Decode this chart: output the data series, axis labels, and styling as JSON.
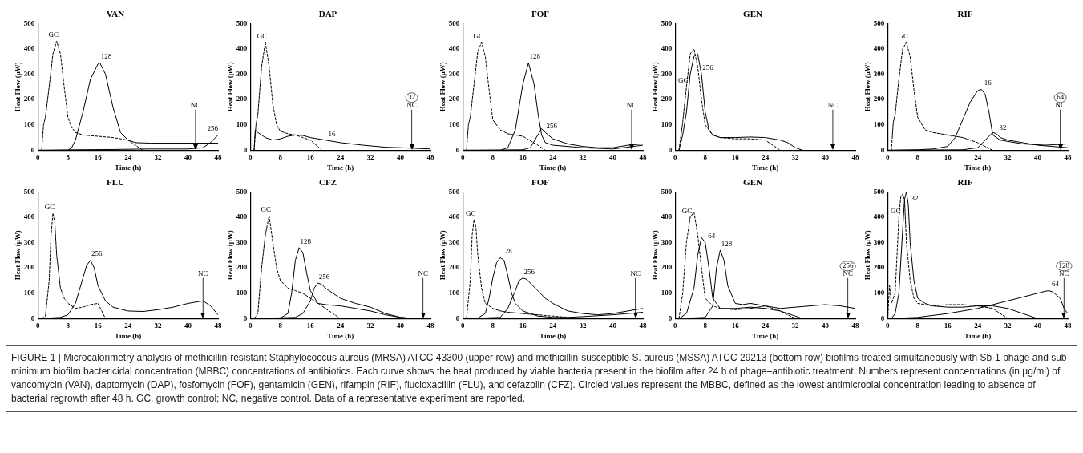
{
  "chart_data": [
    {
      "type": "line",
      "title": "VAN",
      "xlabel": "Time (h)",
      "ylabel": "Heat Flow (μW)",
      "xlim": [
        0,
        48
      ],
      "xticks": [
        0,
        8,
        16,
        24,
        32,
        40,
        48
      ],
      "ylim": [
        0,
        500
      ],
      "yticks": [
        0,
        100,
        200,
        300,
        400,
        500
      ],
      "ref_lines": [
        {
          "axis": "x",
          "value": 42,
          "label": "NC"
        }
      ],
      "series": [
        {
          "name": "GC",
          "color": "#000000",
          "line_style": "dashed",
          "x": [
            0,
            1,
            1.5,
            2,
            3,
            4,
            5,
            6,
            7,
            8,
            9,
            10,
            12,
            16,
            20,
            24,
            26,
            28
          ],
          "values": [
            0,
            0,
            100,
            130,
            250,
            380,
            430,
            380,
            250,
            130,
            90,
            70,
            60,
            55,
            50,
            40,
            20,
            0
          ]
        },
        {
          "name": "128",
          "color": "#000000",
          "line_style": "solid",
          "x": [
            0,
            8,
            9,
            10,
            12,
            14,
            16,
            16.5,
            18,
            20,
            22,
            24,
            26,
            30,
            40,
            48
          ],
          "values": [
            0,
            0,
            10,
            40,
            150,
            280,
            340,
            345,
            300,
            170,
            70,
            40,
            30,
            28,
            28,
            28
          ]
        },
        {
          "name": "256",
          "color": "#000000",
          "line_style": "solid",
          "x": [
            0,
            10,
            20,
            30,
            40,
            44,
            46,
            48
          ],
          "values": [
            0,
            2,
            3,
            5,
            5,
            10,
            30,
            60
          ]
        }
      ]
    },
    {
      "type": "line",
      "title": "DAP",
      "xlabel": "Time (h)",
      "ylabel": "Heat Flow (μW)",
      "xlim": [
        0,
        48
      ],
      "xticks": [
        0,
        8,
        16,
        24,
        32,
        40,
        48
      ],
      "ylim": [
        0,
        500
      ],
      "yticks": [
        0,
        100,
        200,
        300,
        400,
        500
      ],
      "ref_lines": [
        {
          "axis": "x",
          "value": 43,
          "label": "NC"
        }
      ],
      "annotations": [
        "32"
      ],
      "series": [
        {
          "name": "GC",
          "color": "#000000",
          "line_style": "dashed",
          "x": [
            1,
            1.5,
            2,
            3,
            4,
            5,
            6,
            7,
            8,
            10,
            12,
            14,
            16,
            18,
            19
          ],
          "values": [
            0,
            100,
            140,
            330,
            425,
            330,
            180,
            100,
            75,
            65,
            60,
            50,
            40,
            15,
            0
          ]
        },
        {
          "name": "16",
          "color": "#000000",
          "line_style": "solid",
          "x": [
            1,
            1.3,
            2,
            4,
            6,
            8,
            10,
            12,
            14,
            16,
            20,
            24,
            30,
            36,
            40,
            48
          ],
          "values": [
            0,
            80,
            70,
            50,
            40,
            45,
            55,
            60,
            58,
            50,
            40,
            30,
            20,
            12,
            10,
            5
          ]
        }
      ]
    },
    {
      "type": "line",
      "title": "FOF",
      "xlabel": "Time (h)",
      "ylabel": "Heat Flow (μW)",
      "xlim": [
        0,
        48
      ],
      "xticks": [
        0,
        8,
        16,
        24,
        32,
        40,
        48
      ],
      "ylim": [
        0,
        500
      ],
      "yticks": [
        0,
        100,
        200,
        300,
        400,
        500
      ],
      "ref_lines": [
        {
          "axis": "x",
          "value": 45,
          "label": "NC"
        }
      ],
      "series": [
        {
          "name": "GC",
          "color": "#000000",
          "line_style": "dashed",
          "x": [
            1,
            1.5,
            2,
            3,
            4,
            5,
            6,
            7,
            8,
            10,
            12,
            16,
            20,
            22
          ],
          "values": [
            0,
            100,
            130,
            260,
            390,
            425,
            370,
            240,
            120,
            80,
            65,
            55,
            20,
            0
          ]
        },
        {
          "name": "128",
          "color": "#000000",
          "line_style": "solid",
          "x": [
            0,
            10,
            12,
            14,
            16,
            17.5,
            19,
            20,
            21,
            22,
            24,
            28,
            32,
            40,
            48
          ],
          "values": [
            0,
            0,
            10,
            80,
            260,
            345,
            260,
            150,
            60,
            30,
            20,
            15,
            10,
            5,
            20
          ]
        },
        {
          "name": "256",
          "color": "#000000",
          "line_style": "solid",
          "x": [
            0,
            16,
            18,
            20,
            21,
            22,
            24,
            28,
            32,
            36,
            40,
            44,
            48
          ],
          "values": [
            0,
            2,
            10,
            60,
            85,
            70,
            45,
            25,
            15,
            10,
            10,
            20,
            25
          ]
        }
      ]
    },
    {
      "type": "line",
      "title": "GEN",
      "xlabel": "Time (h)",
      "ylabel": "Heat Flow (μW)",
      "xlim": [
        0,
        48
      ],
      "xticks": [
        0,
        8,
        16,
        24,
        32,
        40,
        48
      ],
      "ylim": [
        0,
        500
      ],
      "yticks": [
        0,
        100,
        200,
        300,
        400,
        500
      ],
      "ref_lines": [
        {
          "axis": "x",
          "value": 42,
          "label": "NC"
        }
      ],
      "series": [
        {
          "name": "GC",
          "color": "#000000",
          "line_style": "dashed",
          "x": [
            1,
            2,
            3,
            4,
            5,
            6,
            7,
            8,
            10,
            12,
            16,
            20,
            24,
            26,
            28
          ],
          "values": [
            0,
            110,
            250,
            380,
            400,
            330,
            200,
            100,
            60,
            50,
            45,
            45,
            40,
            20,
            0
          ]
        },
        {
          "name": "256",
          "color": "#000000",
          "line_style": "solid",
          "x": [
            1,
            2,
            3,
            4,
            5,
            6,
            7,
            8,
            9,
            10,
            12,
            16,
            20,
            24,
            28,
            30,
            32,
            34
          ],
          "values": [
            0,
            60,
            150,
            300,
            370,
            380,
            300,
            150,
            80,
            60,
            50,
            50,
            52,
            50,
            40,
            30,
            10,
            0
          ]
        }
      ]
    },
    {
      "type": "line",
      "title": "RIF",
      "xlabel": "Time (h)",
      "ylabel": "Heat Flow (μW)",
      "xlim": [
        0,
        48
      ],
      "xticks": [
        0,
        8,
        16,
        24,
        32,
        40,
        48
      ],
      "ylim": [
        0,
        500
      ],
      "yticks": [
        0,
        100,
        200,
        300,
        400,
        500
      ],
      "ref_lines": [
        {
          "axis": "x",
          "value": 46,
          "label": "NC"
        }
      ],
      "annotations": [
        "64"
      ],
      "series": [
        {
          "name": "GC",
          "color": "#000000",
          "line_style": "dashed",
          "x": [
            1,
            1.5,
            2,
            3,
            4,
            5,
            6,
            7,
            8,
            10,
            12,
            16,
            20,
            24,
            28
          ],
          "values": [
            0,
            110,
            140,
            280,
            400,
            425,
            370,
            240,
            130,
            80,
            70,
            60,
            50,
            30,
            0
          ]
        },
        {
          "name": "16",
          "color": "#000000",
          "line_style": "solid",
          "x": [
            0,
            8,
            12,
            16,
            18,
            20,
            22,
            24,
            25,
            26,
            27,
            28,
            30,
            36,
            42,
            48
          ],
          "values": [
            0,
            2,
            5,
            15,
            50,
            120,
            190,
            235,
            240,
            220,
            150,
            60,
            40,
            25,
            20,
            25
          ]
        },
        {
          "name": "32",
          "color": "#000000",
          "line_style": "solid",
          "x": [
            0,
            20,
            24,
            26,
            28,
            29,
            30,
            32,
            36,
            40,
            48
          ],
          "values": [
            0,
            2,
            10,
            40,
            70,
            65,
            50,
            40,
            30,
            20,
            10
          ]
        }
      ]
    },
    {
      "type": "line",
      "title": "FLU",
      "xlabel": "Time (h)",
      "ylabel": "Heat Flow (μW)",
      "xlim": [
        0,
        48
      ],
      "xticks": [
        0,
        8,
        16,
        24,
        32,
        40,
        48
      ],
      "ylim": [
        0,
        500
      ],
      "yticks": [
        0,
        100,
        200,
        300,
        400,
        500
      ],
      "ref_lines": [
        {
          "axis": "x",
          "value": 44,
          "label": "NC"
        }
      ],
      "series": [
        {
          "name": "GC",
          "color": "#000000",
          "line_style": "dashed",
          "x": [
            1,
            2,
            3,
            3.5,
            4,
            4.5,
            5,
            6,
            7,
            8,
            10,
            12,
            14,
            16,
            17,
            18
          ],
          "values": [
            0,
            10,
            150,
            330,
            415,
            380,
            250,
            120,
            80,
            60,
            40,
            45,
            55,
            60,
            30,
            0
          ]
        },
        {
          "name": "256",
          "color": "#000000",
          "line_style": "solid",
          "x": [
            0,
            6,
            8,
            10,
            12,
            13,
            14,
            15,
            16,
            18,
            20,
            24,
            28,
            32,
            36,
            40,
            44,
            46,
            48
          ],
          "values": [
            0,
            5,
            15,
            60,
            160,
            210,
            230,
            200,
            130,
            70,
            45,
            30,
            28,
            35,
            45,
            60,
            70,
            50,
            15
          ]
        }
      ]
    },
    {
      "type": "line",
      "title": "CFZ",
      "xlabel": "Time (h)",
      "ylabel": "Heat Flow (μW)",
      "xlim": [
        0,
        48
      ],
      "xticks": [
        0,
        8,
        16,
        24,
        32,
        40,
        48
      ],
      "ylim": [
        0,
        500
      ],
      "yticks": [
        0,
        100,
        200,
        300,
        400,
        500
      ],
      "ref_lines": [
        {
          "axis": "x",
          "value": 46,
          "label": "NC"
        }
      ],
      "series": [
        {
          "name": "GC",
          "color": "#000000",
          "line_style": "dashed",
          "x": [
            1,
            2,
            3,
            4,
            5,
            6,
            7,
            8,
            10,
            12,
            14,
            16,
            18,
            20,
            22,
            24
          ],
          "values": [
            0,
            20,
            200,
            330,
            405,
            300,
            200,
            150,
            120,
            110,
            100,
            80,
            60,
            40,
            20,
            0
          ]
        },
        {
          "name": "128",
          "color": "#000000",
          "line_style": "solid",
          "x": [
            0,
            8,
            10,
            11,
            12,
            13,
            14,
            15,
            16,
            18,
            20,
            24,
            28,
            32,
            36,
            40,
            44,
            48
          ],
          "values": [
            0,
            2,
            20,
            100,
            230,
            280,
            260,
            180,
            110,
            60,
            55,
            50,
            40,
            30,
            15,
            5,
            0,
            0
          ]
        },
        {
          "name": "256",
          "color": "#000000",
          "line_style": "solid",
          "x": [
            0,
            12,
            14,
            16,
            17,
            18,
            19,
            20,
            22,
            24,
            28,
            32,
            36,
            40,
            44,
            48
          ],
          "values": [
            0,
            5,
            20,
            70,
            120,
            140,
            135,
            120,
            100,
            80,
            60,
            45,
            20,
            5,
            0,
            0
          ]
        }
      ]
    },
    {
      "type": "line",
      "title": "FOF",
      "xlabel": "Time (h)",
      "ylabel": "Heat Flow (μW)",
      "xlim": [
        0,
        48
      ],
      "xticks": [
        0,
        8,
        16,
        24,
        32,
        40,
        48
      ],
      "ylim": [
        0,
        500
      ],
      "yticks": [
        0,
        100,
        200,
        300,
        400,
        500
      ],
      "ref_lines": [
        {
          "axis": "x",
          "value": 46,
          "label": "NC"
        }
      ],
      "series": [
        {
          "name": "GC",
          "color": "#000000",
          "line_style": "dashed",
          "x": [
            1,
            2,
            2.5,
            3,
            3.5,
            4,
            5,
            6,
            8,
            10,
            12,
            16,
            20,
            24,
            28
          ],
          "values": [
            0,
            150,
            330,
            390,
            360,
            250,
            120,
            60,
            40,
            30,
            25,
            20,
            15,
            10,
            5
          ]
        },
        {
          "name": "128",
          "color": "#000000",
          "line_style": "solid",
          "x": [
            0,
            4,
            6,
            7,
            8,
            9,
            10,
            11,
            12,
            13,
            14,
            16,
            18,
            20,
            24,
            28,
            32,
            40,
            48
          ],
          "values": [
            0,
            2,
            20,
            80,
            160,
            220,
            240,
            230,
            170,
            100,
            60,
            30,
            20,
            10,
            5,
            5,
            8,
            15,
            25
          ]
        },
        {
          "name": "256",
          "color": "#000000",
          "line_style": "solid",
          "x": [
            0,
            10,
            12,
            14,
            15,
            16,
            17,
            18,
            20,
            22,
            24,
            28,
            32,
            36,
            40,
            48
          ],
          "values": [
            0,
            5,
            40,
            110,
            150,
            160,
            155,
            140,
            110,
            80,
            60,
            30,
            20,
            15,
            20,
            40
          ]
        }
      ]
    },
    {
      "type": "line",
      "title": "GEN",
      "xlabel": "Time (h)",
      "ylabel": "Heat Flow (μW)",
      "xlim": [
        0,
        48
      ],
      "xticks": [
        0,
        8,
        16,
        24,
        32,
        40,
        48
      ],
      "ylim": [
        0,
        500
      ],
      "yticks": [
        0,
        100,
        200,
        300,
        400,
        500
      ],
      "ref_lines": [
        {
          "axis": "x",
          "value": 46,
          "label": "NC"
        }
      ],
      "annotations": [
        "256"
      ],
      "series": [
        {
          "name": "GC",
          "color": "#000000",
          "line_style": "dashed",
          "x": [
            1,
            2,
            3,
            4,
            5,
            6,
            7,
            8,
            10,
            12,
            16,
            20,
            24,
            28,
            32
          ],
          "values": [
            0,
            100,
            300,
            400,
            420,
            330,
            200,
            80,
            50,
            40,
            35,
            40,
            50,
            30,
            0
          ]
        },
        {
          "name": "64",
          "color": "#000000",
          "line_style": "solid",
          "x": [
            1,
            3,
            5,
            6,
            7,
            8,
            9,
            10,
            12,
            16,
            20,
            24,
            28,
            32,
            34
          ],
          "values": [
            0,
            20,
            120,
            250,
            320,
            300,
            200,
            80,
            40,
            40,
            45,
            40,
            30,
            10,
            0
          ]
        },
        {
          "name": "128",
          "color": "#000000",
          "line_style": "solid",
          "x": [
            0,
            8,
            10,
            11,
            12,
            13,
            14,
            16,
            18,
            20,
            24,
            28,
            32,
            36,
            40,
            44,
            48
          ],
          "values": [
            0,
            5,
            50,
            200,
            270,
            230,
            130,
            60,
            55,
            60,
            50,
            40,
            45,
            50,
            55,
            50,
            40
          ]
        }
      ]
    },
    {
      "type": "line",
      "title": "RIF",
      "xlabel": "Time (h)",
      "ylabel": "Heat Flow (μW)",
      "xlim": [
        0,
        48
      ],
      "xticks": [
        0,
        8,
        16,
        24,
        32,
        40,
        48
      ],
      "ylim": [
        0,
        500
      ],
      "yticks": [
        0,
        100,
        200,
        300,
        400,
        500
      ],
      "ref_lines": [
        {
          "axis": "x",
          "value": 47,
          "label": "NC"
        }
      ],
      "annotations": [
        "128"
      ],
      "series": [
        {
          "name": "GC",
          "color": "#000000",
          "line_style": "dashed",
          "x": [
            0,
            0.5,
            1,
            2,
            3,
            3.5,
            4,
            4.5,
            5,
            6,
            7,
            8,
            12,
            16,
            20,
            24,
            28,
            30,
            32
          ],
          "values": [
            0,
            130,
            60,
            100,
            400,
            480,
            490,
            470,
            300,
            150,
            80,
            60,
            50,
            55,
            55,
            50,
            40,
            20,
            0
          ]
        },
        {
          "name": "32",
          "color": "#000000",
          "line_style": "solid",
          "x": [
            1,
            2,
            3,
            4,
            4.5,
            5,
            5.5,
            6,
            7,
            8,
            10,
            12,
            16,
            20,
            24,
            28,
            32,
            36,
            40
          ],
          "values": [
            0,
            20,
            100,
            350,
            470,
            500,
            450,
            300,
            150,
            80,
            60,
            50,
            45,
            45,
            50,
            50,
            40,
            20,
            0
          ]
        },
        {
          "name": "64",
          "color": "#000000",
          "line_style": "solid",
          "x": [
            0,
            8,
            16,
            24,
            28,
            32,
            36,
            40,
            42,
            43,
            44,
            46,
            47,
            48
          ],
          "values": [
            0,
            5,
            20,
            40,
            55,
            70,
            85,
            100,
            108,
            110,
            105,
            80,
            40,
            20
          ]
        }
      ]
    },
    {
      "type": "other",
      "annotations": [
        "FIGURE 1 | Microcalorimetry analysis of methicillin-resistant Staphylococcus aureus (MRSA) ATCC 43300 (upper row) and methicillin-susceptible S. aureus (MSSA) ATCC 29213 (bottom row) biofilms treated simultaneously with Sb-1 phage and sub-minimum biofilm bactericidal concentration (MBBC) concentrations of antibiotics. Each curve shows the heat produced by viable bacteria present in the biofilm after 24 h of phage–antibiotic treatment. Numbers represent concentrations (in μg/ml) of vancomycin (VAN), daptomycin (DAP), fosfomycin (FOF), gentamicin (GEN), rifampin (RIF), flucloxacillin (FLU), and cefazolin (CFZ). Circled values represent the MBBC, defined as the lowest antimicrobial concentration leading to absence of bacterial regrowth after 48 h. GC, growth control; NC, negative control. Data of a representative experiment are reported."
      ]
    }
  ]
}
